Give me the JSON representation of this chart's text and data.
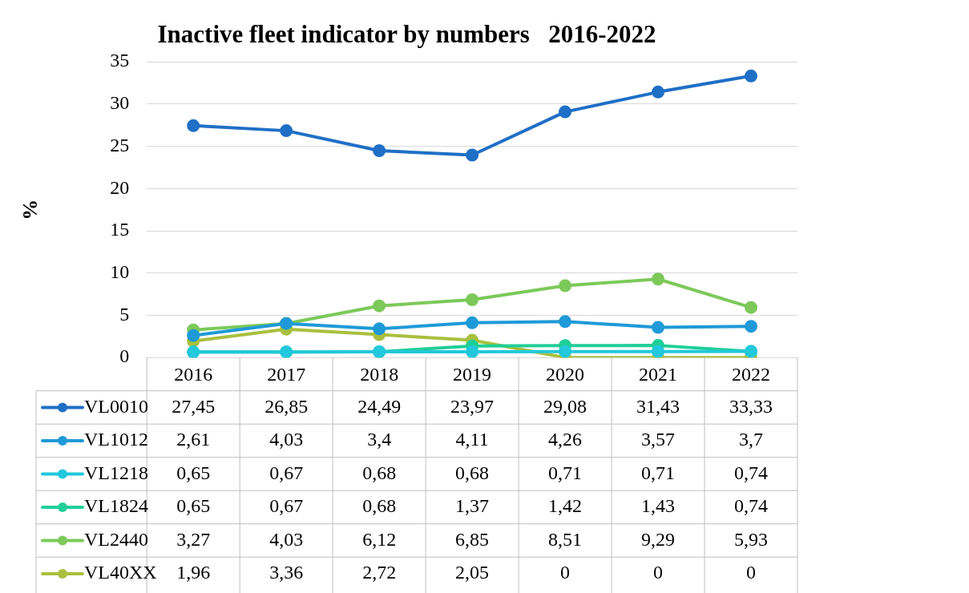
{
  "chart_data": {
    "type": "line",
    "title": "Inactive fleet indicator by numbers   2016-2022",
    "ylabel": "%",
    "categories": [
      "2016",
      "2017",
      "2018",
      "2019",
      "2020",
      "2021",
      "2022"
    ],
    "ylim": [
      0,
      35
    ],
    "yticks": [
      0,
      5,
      10,
      15,
      20,
      25,
      30,
      35
    ],
    "grid": "y",
    "legend": "bottom",
    "marker": "circle",
    "series": [
      {
        "name": "VL0010",
        "color": "#1f6fc6",
        "values": [
          27.45,
          26.85,
          24.49,
          23.97,
          29.08,
          31.43,
          33.33
        ],
        "value_labels": [
          "27,45",
          "26,85",
          "24,49",
          "23,97",
          "29,08",
          "31,43",
          "33,33"
        ]
      },
      {
        "name": "VL1012",
        "color": "#1f9ad8",
        "values": [
          2.61,
          4.03,
          3.4,
          4.11,
          4.26,
          3.57,
          3.7
        ],
        "value_labels": [
          "2,61",
          "4,03",
          "3,4",
          "4,11",
          "4,26",
          "3,57",
          "3,7"
        ]
      },
      {
        "name": "VL1218",
        "color": "#22c8dc",
        "values": [
          0.65,
          0.67,
          0.68,
          0.68,
          0.71,
          0.71,
          0.74
        ],
        "value_labels": [
          "0,65",
          "0,67",
          "0,68",
          "0,68",
          "0,71",
          "0,71",
          "0,74"
        ]
      },
      {
        "name": "VL1824",
        "color": "#1fcf98",
        "values": [
          0.65,
          0.67,
          0.68,
          1.37,
          1.42,
          1.43,
          0.74
        ],
        "value_labels": [
          "0,65",
          "0,67",
          "0,68",
          "1,37",
          "1,42",
          "1,43",
          "0,74"
        ]
      },
      {
        "name": "VL2440",
        "color": "#7cc95a",
        "values": [
          3.27,
          4.03,
          6.12,
          6.85,
          8.51,
          9.29,
          5.93
        ],
        "value_labels": [
          "3,27",
          "4,03",
          "6,12",
          "6,85",
          "8,51",
          "9,29",
          "5,93"
        ]
      },
      {
        "name": "VL40XX",
        "color": "#a9c03e",
        "values": [
          1.96,
          3.36,
          2.72,
          2.05,
          0,
          0,
          0
        ],
        "value_labels": [
          "1,96",
          "3,36",
          "2,72",
          "2,05",
          "0",
          "0",
          "0"
        ]
      }
    ]
  }
}
